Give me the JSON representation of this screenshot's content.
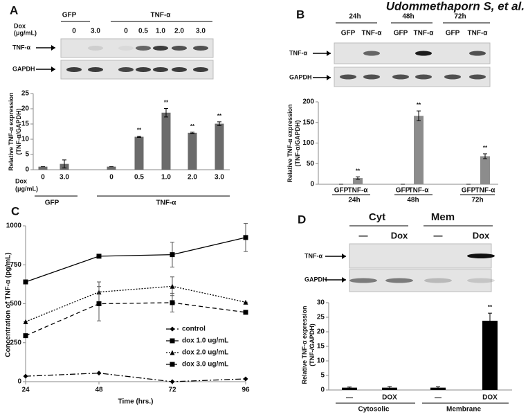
{
  "attribution": "Udommethaporn S, et al.",
  "chart_data": [
    {
      "type": "bar",
      "panel": "A",
      "blot": {
        "groups": [
          "GFP",
          "TNF-α"
        ],
        "header_label": [
          "Dox",
          "(μg/mL)"
        ],
        "lanes": [
          "0",
          "3.0",
          "0",
          "0.5",
          "1.0",
          "2.0",
          "3.0"
        ],
        "rows": [
          "TNF-α",
          "GAPDH"
        ]
      },
      "y_label": [
        "Relative TNF-α expression",
        "(TNF-α/GAPDH)"
      ],
      "x_row_label": [
        "Dox",
        "(μg/mL)"
      ],
      "categories": [
        "0",
        "3.0",
        "0",
        "0.5",
        "1.0",
        "2.0",
        "3.0"
      ],
      "groups": [
        "GFP",
        "TNF-α"
      ],
      "values": [
        1,
        1.9,
        1,
        10.8,
        18.7,
        12.1,
        15.1
      ],
      "errors": [
        0,
        1.3,
        0,
        0.2,
        1.4,
        0.2,
        0.6
      ],
      "annotations": [
        null,
        null,
        null,
        "**",
        "**",
        "**",
        "**"
      ],
      "color": "#6b6b6b",
      "ylim": [
        0,
        25
      ],
      "yticks": [
        0,
        5,
        10,
        15,
        20,
        25
      ]
    },
    {
      "type": "bar",
      "panel": "B",
      "blot": {
        "groups": [
          "24h",
          "48h",
          "72h"
        ],
        "lanes": [
          "GFP",
          "TNF-α",
          "GFP",
          "TNF-α",
          "GFP",
          "TNF-α"
        ],
        "rows": [
          "TNF-α",
          "GAPDH"
        ]
      },
      "y_label": [
        "Relative TNF-α expression",
        "(TNF-α/GAPDH)"
      ],
      "categories": [
        "GFP",
        "TNF-α",
        "GFP",
        "TNF-α",
        "GFP",
        "TNF-α"
      ],
      "groups": [
        "24h",
        "48h",
        "72h"
      ],
      "values": [
        0,
        15,
        0,
        166,
        0,
        68
      ],
      "errors": [
        0,
        3,
        0,
        12,
        0,
        6
      ],
      "annotations": [
        null,
        "**",
        null,
        "**",
        null,
        "**"
      ],
      "color": "#8c8c8c",
      "ylim": [
        0,
        200
      ],
      "yticks": [
        0,
        50,
        100,
        150,
        200
      ]
    },
    {
      "type": "line",
      "panel": "C",
      "x_label": "Time (hrs.)",
      "y_label": "Concentration of TNF-α (pg/mL)",
      "x": [
        24,
        48,
        72,
        96
      ],
      "xlim": [
        24,
        96
      ],
      "xticks": [
        24,
        48,
        72,
        96
      ],
      "ylim": [
        0,
        1000
      ],
      "yticks": [
        0,
        250,
        500,
        750,
        1000
      ],
      "series": [
        {
          "name": "control",
          "color": "#000000",
          "dash": "dashdot",
          "marker": "diamond",
          "values": [
            35,
            55,
            0,
            18
          ],
          "errors": [
            0,
            0,
            0,
            0
          ]
        },
        {
          "name": "dox 1.0 ug/mL",
          "color": "#000000",
          "dash": "solid",
          "marker": "square",
          "values": [
            640,
            805,
            815,
            925
          ],
          "errors": [
            0,
            0,
            80,
            90
          ]
        },
        {
          "name": "dox 2.0 ug/mL",
          "color": "#000000",
          "dash": "dotted",
          "marker": "triangle",
          "values": [
            385,
            575,
            612,
            510
          ],
          "errors": [
            0,
            65,
            60,
            0
          ]
        },
        {
          "name": "dox 3.0 ug/mL",
          "color": "#000000",
          "dash": "dashed",
          "marker": "square",
          "values": [
            295,
            500,
            507,
            445
          ],
          "errors": [
            0,
            110,
            60,
            0
          ]
        }
      ]
    },
    {
      "type": "bar",
      "panel": "D",
      "blot": {
        "groups": [
          "Cyt",
          "Mem"
        ],
        "lanes": [
          "—",
          "Dox",
          "—",
          "Dox"
        ],
        "rows": [
          "TNF-α",
          "GAPDH"
        ]
      },
      "y_label": [
        "Relative TNF-α expression",
        "(TNF-/GAPDH)"
      ],
      "categories": [
        "—",
        "DOX",
        "—",
        "DOX"
      ],
      "groups": [
        "Cytosolic",
        "Membrane"
      ],
      "values": [
        0.8,
        0.8,
        0.8,
        23.8
      ],
      "errors": [
        0.2,
        0.4,
        0.3,
        2.6
      ],
      "annotations": [
        null,
        null,
        null,
        "**"
      ],
      "color": "#000000",
      "ylim": [
        0,
        30
      ],
      "yticks": [
        0,
        5,
        10,
        15,
        20,
        25,
        30
      ]
    }
  ]
}
